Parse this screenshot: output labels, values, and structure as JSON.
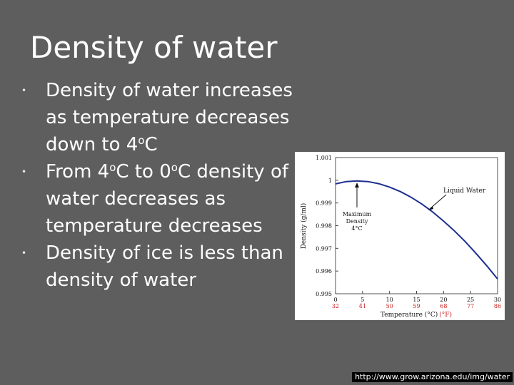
{
  "slide": {
    "title": "Density of water",
    "bullets": [
      [
        "Density of water increases as temperature decreases down to 4",
        "o",
        "C"
      ],
      [
        "From 4",
        "o",
        "C to 0",
        "o",
        "C density of water decreases as temperature decreases"
      ],
      [
        "Density of ice is less than density of water"
      ]
    ],
    "source": "http://www.grow.arizona.edu/img/water"
  },
  "chart_data": {
    "type": "line",
    "xlabel": "Temperature (°C)",
    "xlabel_f": "(°F)",
    "ylabel": "Density (g/ml)",
    "x_ticks": [
      0,
      5,
      10,
      15,
      20,
      25,
      30
    ],
    "x_ticks_f": [
      32,
      41,
      50,
      59,
      68,
      77,
      86
    ],
    "y_ticks": [
      0.995,
      0.996,
      0.997,
      0.998,
      0.999,
      1,
      1.001
    ],
    "y_tick_labels": [
      "0.995",
      "0.996",
      "0.997",
      "0.998",
      "0.999",
      "1",
      "1.001"
    ],
    "xlim": [
      0,
      30
    ],
    "ylim": [
      0.995,
      1.001
    ],
    "series": [
      {
        "name": "Liquid Water",
        "x": [
          0,
          2,
          4,
          6,
          8,
          10,
          12,
          14,
          16,
          18,
          20,
          22,
          24,
          26,
          28,
          30
        ],
        "y": [
          0.99984,
          0.99994,
          0.99997,
          0.99994,
          0.99985,
          0.9997,
          0.9995,
          0.99925,
          0.99895,
          0.9986,
          0.9982,
          0.99777,
          0.9973,
          0.99678,
          0.99623,
          0.99565
        ]
      }
    ],
    "annotations": [
      {
        "text": "Liquid Water"
      },
      {
        "text": "Maximum Density 4°C"
      }
    ],
    "colors": {
      "line": "#1d2f8f",
      "fahrenheit": "#cc2222"
    }
  }
}
